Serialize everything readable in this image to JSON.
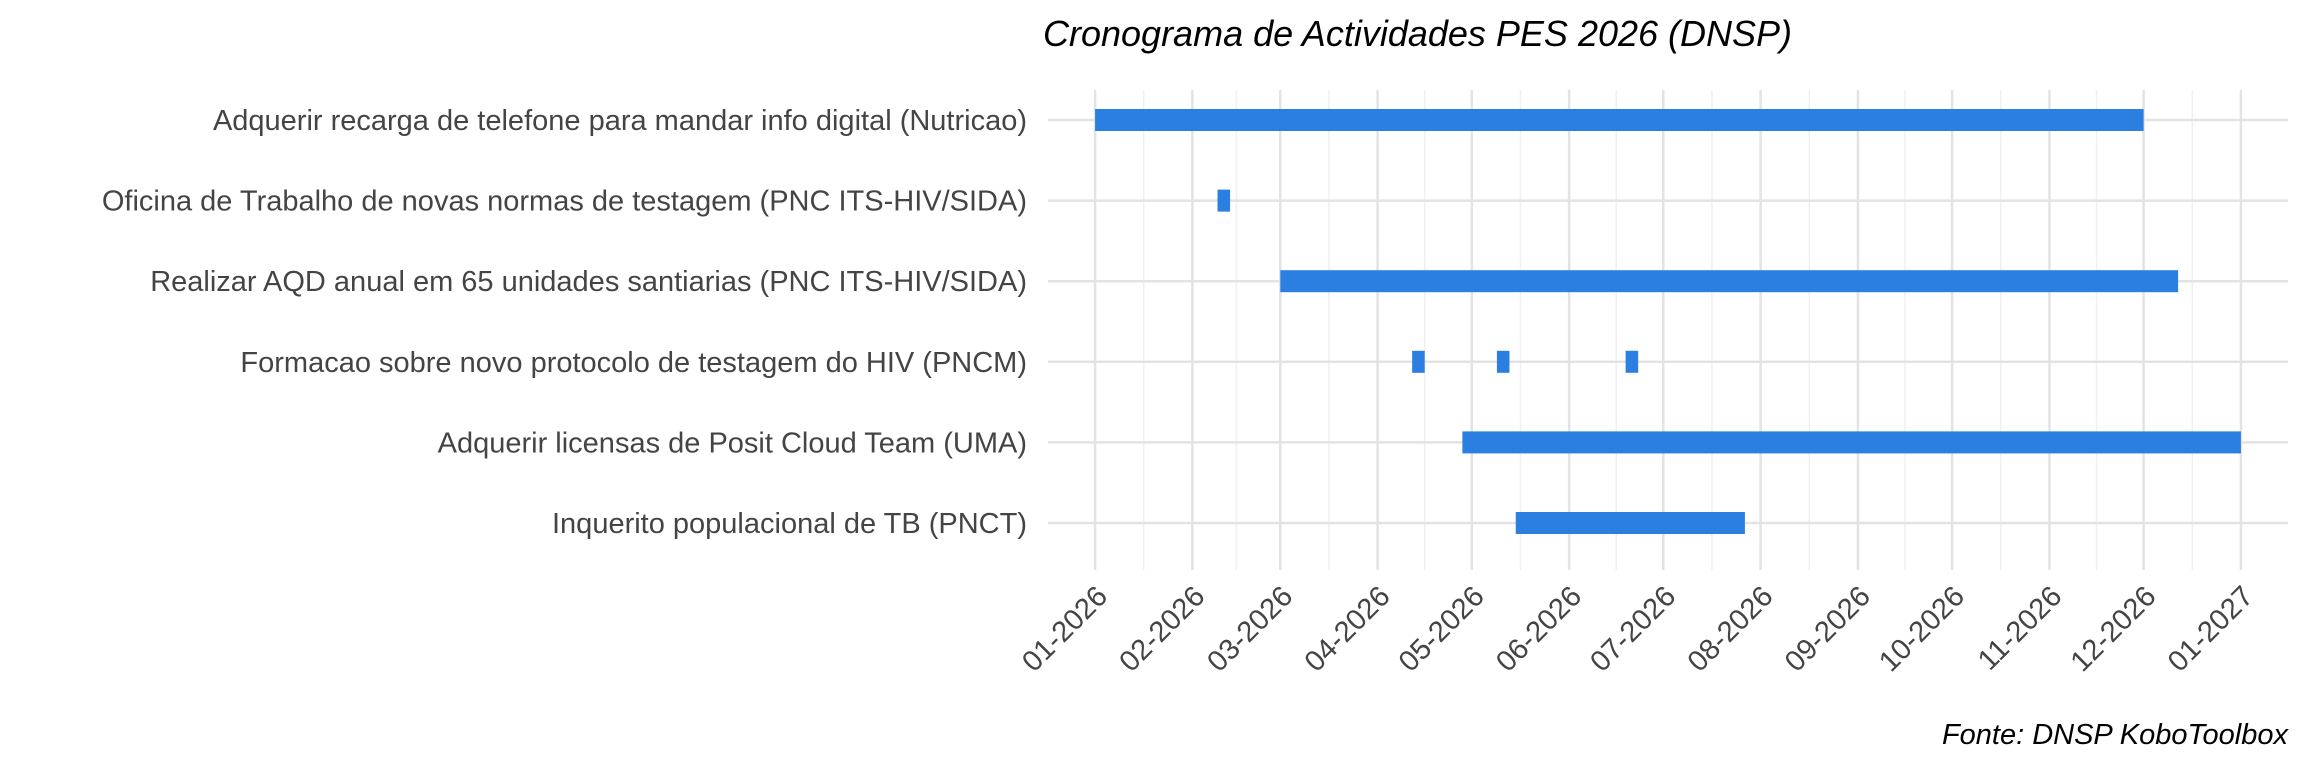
{
  "chart_data": {
    "type": "gantt",
    "title": "Cronograma de Actividades PES 2026 (DNSP)",
    "caption": "Fonte: DNSP KoboToolbox",
    "xlabel": "",
    "ylabel": "",
    "x_type": "date",
    "xlim": [
      "2025-12-17",
      "2027-01-16"
    ],
    "x_ticks": [
      "2026-01-01",
      "2026-02-01",
      "2026-03-01",
      "2026-04-01",
      "2026-05-01",
      "2026-06-01",
      "2026-07-01",
      "2026-08-01",
      "2026-09-01",
      "2026-10-01",
      "2026-11-01",
      "2026-12-01",
      "2027-01-01"
    ],
    "x_tick_labels": [
      "01-2026",
      "02-2026",
      "03-2026",
      "04-2026",
      "05-2026",
      "06-2026",
      "07-2026",
      "08-2026",
      "09-2026",
      "10-2026",
      "11-2026",
      "12-2026",
      "01-2027"
    ],
    "grid": true,
    "bar_color": "#2a7fe0",
    "tasks": [
      {
        "label": "Adquerir recarga de telefone para mandar info digital (Nutricao)",
        "segments": [
          [
            "2026-01-01",
            "2026-12-01"
          ]
        ]
      },
      {
        "label": "Oficina de Trabalho de novas normas de testagem (PNC ITS-HIV/SIDA)",
        "segments": [
          [
            "2026-02-09",
            "2026-02-13"
          ]
        ]
      },
      {
        "label": "Realizar AQD anual em 65 unidades santiarias (PNC ITS-HIV/SIDA)",
        "segments": [
          [
            "2026-03-01",
            "2026-12-12"
          ]
        ]
      },
      {
        "label": "Formacao sobre novo protocolo de testagem do HIV (PNCM)",
        "segments": [
          [
            "2026-04-12",
            "2026-04-16"
          ],
          [
            "2026-05-09",
            "2026-05-13"
          ],
          [
            "2026-06-19",
            "2026-06-23"
          ]
        ]
      },
      {
        "label": "Adquerir licensas de Posit Cloud Team (UMA)",
        "segments": [
          [
            "2026-04-28",
            "2027-01-01"
          ]
        ]
      },
      {
        "label": "Inquerito populacional de TB (PNCT)",
        "segments": [
          [
            "2026-05-15",
            "2026-07-27"
          ]
        ]
      }
    ]
  }
}
